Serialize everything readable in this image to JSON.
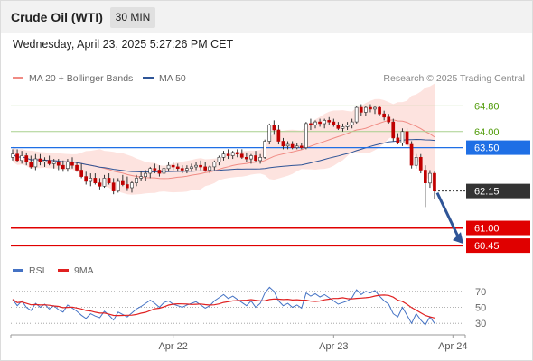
{
  "header": {
    "title": "Crude Oil (WTI)",
    "timeframe": "30 MIN"
  },
  "datetime": "Wednesday, April 23, 2025 5:27:26 PM CET",
  "legend": {
    "ma20": {
      "label": "MA 20 + Bollinger Bands",
      "color": "#f08b84"
    },
    "ma50": {
      "label": "MA 50",
      "color": "#2f5597"
    },
    "rsi": {
      "label": "RSI",
      "color": "#4472c4"
    },
    "ma9": {
      "label": "9MA",
      "color": "#e02020"
    }
  },
  "copyright": "Research © 2025 Trading Central",
  "chart_data": {
    "type": "candlestick",
    "price_range": [
      60.2,
      65.4
    ],
    "levels": [
      {
        "value": 64.8,
        "label": "64.80",
        "kind": "resistance",
        "color": "#a8d08d",
        "text_color": "#4e9a06"
      },
      {
        "value": 64.0,
        "label": "64.00",
        "kind": "resistance",
        "color": "#a8d08d",
        "text_color": "#4e9a06"
      },
      {
        "value": 63.5,
        "label": "63.50",
        "kind": "pivot",
        "color": "#1f6fe5"
      },
      {
        "value": 62.15,
        "label": "62.15",
        "kind": "last",
        "color": "#333333"
      },
      {
        "value": 61.0,
        "label": "61.00",
        "kind": "support",
        "color": "#e00000"
      },
      {
        "value": 60.45,
        "label": "60.45",
        "kind": "support",
        "color": "#e00000"
      }
    ],
    "x_labels": [
      {
        "label": "Apr 22",
        "index": 35
      },
      {
        "label": "Apr 23",
        "index": 70
      },
      {
        "label": "Apr 24",
        "index": 96
      }
    ],
    "candles": [
      [
        63.2,
        63.45,
        63.1,
        63.3
      ],
      [
        63.3,
        63.45,
        63.05,
        63.1
      ],
      [
        63.1,
        63.4,
        63.0,
        63.25
      ],
      [
        63.25,
        63.35,
        62.95,
        63.05
      ],
      [
        63.05,
        63.25,
        62.85,
        62.9
      ],
      [
        62.9,
        63.3,
        62.8,
        63.15
      ],
      [
        63.15,
        63.3,
        62.95,
        63.05
      ],
      [
        63.05,
        63.2,
        62.9,
        63.1
      ],
      [
        63.1,
        63.25,
        62.95,
        63.0
      ],
      [
        63.0,
        63.15,
        62.85,
        63.05
      ],
      [
        63.05,
        63.15,
        62.8,
        62.95
      ],
      [
        62.95,
        63.1,
        62.75,
        62.85
      ],
      [
        62.85,
        63.15,
        62.75,
        63.05
      ],
      [
        63.05,
        63.2,
        62.85,
        62.95
      ],
      [
        62.95,
        63.05,
        62.75,
        62.8
      ],
      [
        62.8,
        63.0,
        62.55,
        62.6
      ],
      [
        62.6,
        62.75,
        62.35,
        62.45
      ],
      [
        62.45,
        62.7,
        62.3,
        62.55
      ],
      [
        62.55,
        62.7,
        62.35,
        62.4
      ],
      [
        62.4,
        62.55,
        62.2,
        62.3
      ],
      [
        62.3,
        62.65,
        62.25,
        62.55
      ],
      [
        62.55,
        62.7,
        62.35,
        62.4
      ],
      [
        62.4,
        62.55,
        62.05,
        62.15
      ],
      [
        62.15,
        62.55,
        62.1,
        62.45
      ],
      [
        62.45,
        62.65,
        62.3,
        62.35
      ],
      [
        62.35,
        62.6,
        62.15,
        62.25
      ],
      [
        62.25,
        62.45,
        62.1,
        62.4
      ],
      [
        62.4,
        62.65,
        62.3,
        62.55
      ],
      [
        62.55,
        62.75,
        62.45,
        62.6
      ],
      [
        62.6,
        62.8,
        62.45,
        62.7
      ],
      [
        62.7,
        62.9,
        62.55,
        62.85
      ],
      [
        62.85,
        63.0,
        62.7,
        62.8
      ],
      [
        62.8,
        62.95,
        62.6,
        62.7
      ],
      [
        62.7,
        62.9,
        62.6,
        62.85
      ],
      [
        62.85,
        63.05,
        62.75,
        62.95
      ],
      [
        62.95,
        63.05,
        62.8,
        62.9
      ],
      [
        62.9,
        63.0,
        62.75,
        62.85
      ],
      [
        62.85,
        62.95,
        62.7,
        62.8
      ],
      [
        62.8,
        62.95,
        62.7,
        62.85
      ],
      [
        62.85,
        63.0,
        62.75,
        62.9
      ],
      [
        62.9,
        63.05,
        62.8,
        62.95
      ],
      [
        62.95,
        63.1,
        62.8,
        62.9
      ],
      [
        62.9,
        63.05,
        62.75,
        62.8
      ],
      [
        62.8,
        62.95,
        62.7,
        62.9
      ],
      [
        62.9,
        63.1,
        62.8,
        63.05
      ],
      [
        63.05,
        63.25,
        62.95,
        63.2
      ],
      [
        63.2,
        63.4,
        63.1,
        63.3
      ],
      [
        63.3,
        63.45,
        63.15,
        63.25
      ],
      [
        63.25,
        63.4,
        63.15,
        63.35
      ],
      [
        63.35,
        63.45,
        63.2,
        63.3
      ],
      [
        63.3,
        63.45,
        63.15,
        63.2
      ],
      [
        63.2,
        63.35,
        63.05,
        63.15
      ],
      [
        63.15,
        63.3,
        63.0,
        63.25
      ],
      [
        63.25,
        63.4,
        63.05,
        63.1
      ],
      [
        63.1,
        63.3,
        63.0,
        63.2
      ],
      [
        63.2,
        63.75,
        63.15,
        63.7
      ],
      [
        63.7,
        64.25,
        63.6,
        64.2
      ],
      [
        64.2,
        64.35,
        63.9,
        64.05
      ],
      [
        64.05,
        64.2,
        63.6,
        63.7
      ],
      [
        63.7,
        63.8,
        63.45,
        63.55
      ],
      [
        63.55,
        63.7,
        63.45,
        63.6
      ],
      [
        63.6,
        63.7,
        63.45,
        63.5
      ],
      [
        63.5,
        63.65,
        63.45,
        63.55
      ],
      [
        63.55,
        63.65,
        63.45,
        63.5
      ],
      [
        63.5,
        64.3,
        63.45,
        64.25
      ],
      [
        64.25,
        64.4,
        64.05,
        64.2
      ],
      [
        64.2,
        64.35,
        64.1,
        64.3
      ],
      [
        64.3,
        64.4,
        64.15,
        64.25
      ],
      [
        64.25,
        64.4,
        64.1,
        64.35
      ],
      [
        64.35,
        64.45,
        64.2,
        64.3
      ],
      [
        64.3,
        64.4,
        64.15,
        64.2
      ],
      [
        64.2,
        64.3,
        64.05,
        64.1
      ],
      [
        64.1,
        64.25,
        64.0,
        64.15
      ],
      [
        64.15,
        64.3,
        64.05,
        64.2
      ],
      [
        64.2,
        64.4,
        64.1,
        64.3
      ],
      [
        64.3,
        64.8,
        64.25,
        64.75
      ],
      [
        64.75,
        64.85,
        64.5,
        64.6
      ],
      [
        64.6,
        64.8,
        64.5,
        64.75
      ],
      [
        64.75,
        64.85,
        64.6,
        64.7
      ],
      [
        64.7,
        64.8,
        64.55,
        64.75
      ],
      [
        64.75,
        64.8,
        64.5,
        64.55
      ],
      [
        64.55,
        64.65,
        64.35,
        64.45
      ],
      [
        64.45,
        64.55,
        64.25,
        64.3
      ],
      [
        64.3,
        64.4,
        63.7,
        63.8
      ],
      [
        63.8,
        63.95,
        63.6,
        63.65
      ],
      [
        63.65,
        64.1,
        63.55,
        64.0
      ],
      [
        64.0,
        64.1,
        63.55,
        63.6
      ],
      [
        63.6,
        63.7,
        62.85,
        62.95
      ],
      [
        62.95,
        63.3,
        62.85,
        63.2
      ],
      [
        63.2,
        63.3,
        62.7,
        62.8
      ],
      [
        62.8,
        62.95,
        61.65,
        62.4
      ],
      [
        62.4,
        62.8,
        62.25,
        62.7
      ],
      [
        62.7,
        62.75,
        61.9,
        62.15
      ]
    ],
    "rsi": {
      "range": [
        20,
        80
      ],
      "ticks": [
        70,
        50,
        30
      ],
      "values": [
        60,
        52,
        58,
        50,
        46,
        55,
        50,
        54,
        48,
        52,
        47,
        44,
        53,
        49,
        45,
        40,
        36,
        42,
        39,
        37,
        45,
        40,
        34,
        44,
        41,
        38,
        43,
        48,
        51,
        55,
        59,
        55,
        50,
        56,
        58,
        54,
        52,
        50,
        53,
        55,
        57,
        53,
        49,
        52,
        58,
        62,
        66,
        61,
        64,
        60,
        56,
        52,
        58,
        50,
        55,
        68,
        75,
        70,
        58,
        52,
        55,
        50,
        53,
        49,
        68,
        64,
        67,
        63,
        66,
        62,
        58,
        54,
        56,
        58,
        62,
        72,
        66,
        70,
        68,
        71,
        64,
        58,
        54,
        42,
        38,
        50,
        40,
        30,
        42,
        34,
        28,
        38,
        30
      ]
    }
  }
}
